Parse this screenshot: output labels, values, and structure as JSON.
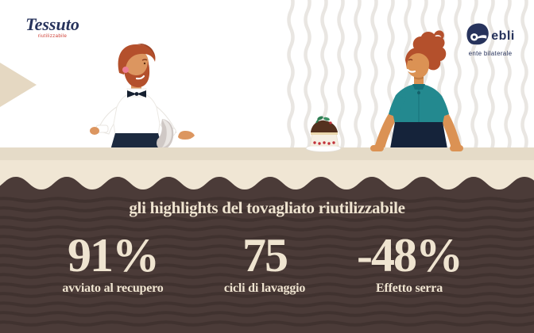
{
  "brand": {
    "tessuto": {
      "name": "Tessuto",
      "tagline": "riutilizzabile"
    },
    "ebli": {
      "name": "ebli",
      "tagline": "ente bilaterale"
    }
  },
  "highlights": {
    "title": "gli highlights del tovagliato riutilizzabile",
    "stats": [
      {
        "value": "91%",
        "label": "avviato al recupero"
      },
      {
        "value": "75",
        "label": "cicli di lavaggio"
      },
      {
        "value": "-48%",
        "label": "Effetto serra"
      }
    ]
  },
  "colors": {
    "brown": "#4B3B38",
    "cream": "#EFE4D0",
    "counter": "#E5DBC8",
    "cream_band": "#F0E6D4",
    "triangle_beige": "#E5D8C2",
    "teal": "#23898F",
    "navy": "#1C2A3F",
    "logo_navy": "#27335C",
    "hair_red": "#B4502C",
    "skin": "#DC9660",
    "accent_red": "#CD3A30"
  },
  "icons": {
    "ebli_mark": "ebli-wave-logo-icon",
    "waiter": "waiter-illustration",
    "woman": "woman-illustration",
    "cake": "cake-slice-icon"
  }
}
